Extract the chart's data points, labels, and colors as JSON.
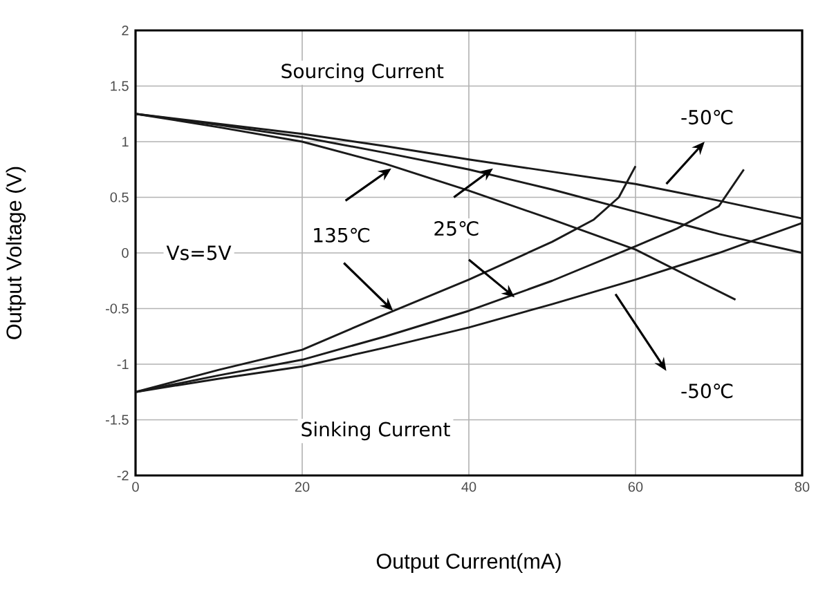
{
  "chart_data": {
    "type": "line",
    "xlabel": "Output Current(mA)",
    "ylabel": "Output Voltage (V)",
    "xlim": [
      0,
      80
    ],
    "ylim": [
      -2,
      2
    ],
    "xticks": [
      0,
      20,
      40,
      60,
      80
    ],
    "yticks": [
      -2,
      -1.5,
      -1,
      -0.5,
      0,
      0.5,
      1,
      1.5,
      2
    ],
    "grid": true,
    "marker": "none",
    "line_style": "solid",
    "series": [
      {
        "color": "#1a1a1a",
        "x": [
          0,
          10,
          20,
          30,
          40,
          50,
          60,
          70,
          80
        ],
        "values": [
          1.25,
          1.16,
          1.07,
          0.96,
          0.84,
          0.73,
          0.62,
          0.47,
          0.31
        ]
      },
      {
        "color": "#1a1a1a",
        "x": [
          0,
          10,
          20,
          30,
          40,
          50,
          60,
          70,
          80
        ],
        "values": [
          1.25,
          1.15,
          1.04,
          0.9,
          0.75,
          0.57,
          0.37,
          0.17,
          0.0
        ]
      },
      {
        "color": "#1a1a1a",
        "x": [
          0,
          10,
          20,
          30,
          40,
          50,
          60,
          72
        ],
        "values": [
          1.25,
          1.13,
          1.0,
          0.8,
          0.56,
          0.3,
          0.03,
          -0.42
        ]
      },
      {
        "color": "#1a1a1a",
        "x": [
          0,
          10,
          20,
          30,
          40,
          50,
          55,
          58,
          60
        ],
        "values": [
          -1.25,
          -1.05,
          -0.87,
          -0.55,
          -0.24,
          0.1,
          0.3,
          0.5,
          0.78
        ]
      },
      {
        "color": "#1a1a1a",
        "x": [
          0,
          10,
          20,
          30,
          40,
          50,
          60,
          65,
          70,
          73
        ],
        "values": [
          -1.25,
          -1.1,
          -0.96,
          -0.75,
          -0.52,
          -0.25,
          0.06,
          0.22,
          0.42,
          0.75
        ]
      },
      {
        "color": "#1a1a1a",
        "x": [
          0,
          10,
          20,
          30,
          40,
          50,
          60,
          70,
          80
        ],
        "values": [
          -1.25,
          -1.13,
          -1.02,
          -0.85,
          -0.67,
          -0.46,
          -0.24,
          0.0,
          0.27
        ]
      }
    ],
    "annotations": [
      "Sourcing Current",
      "Sinking Current",
      "Vs=5V",
      {
        "text": "135℃",
        "x": 30.9,
        "y": -0.52
      },
      {
        "text": "25℃",
        "x": 42.9,
        "y": 0.76
      },
      "-50℃",
      "-50℃"
    ]
  }
}
